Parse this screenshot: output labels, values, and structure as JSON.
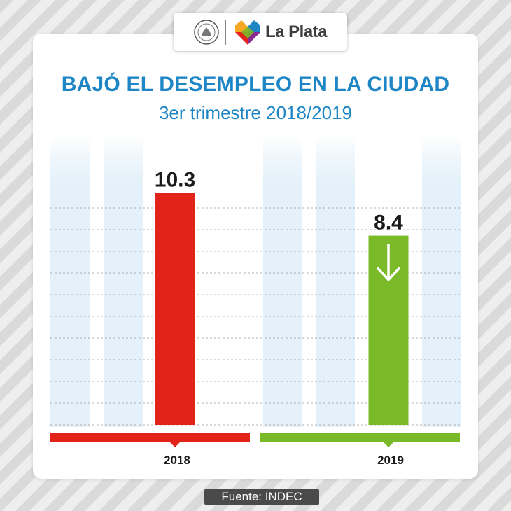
{
  "brand": {
    "name": "La Plata",
    "seal_icon": "municipal-seal-icon",
    "heart_icon": "multicolor-heart-icon",
    "heart_colors": [
      "#e2231a",
      "#f7a823",
      "#7ab928",
      "#1f86c6",
      "#8a2b8f"
    ]
  },
  "title": "BAJÓ EL DESEMPLEO EN LA CIUDAD",
  "subtitle": "3er trimestre 2018/2019",
  "chart_data": {
    "type": "bar",
    "categories": [
      "2018",
      "2019"
    ],
    "values": [
      10.3,
      8.4
    ],
    "value_labels": [
      "10.3",
      "8.4"
    ],
    "colors": [
      "#e2231a",
      "#7ab928"
    ],
    "ylim": [
      0,
      11.4
    ],
    "grid": true,
    "annotation_icon": "down-arrow-icon"
  },
  "source": "Fuente: INDEC"
}
